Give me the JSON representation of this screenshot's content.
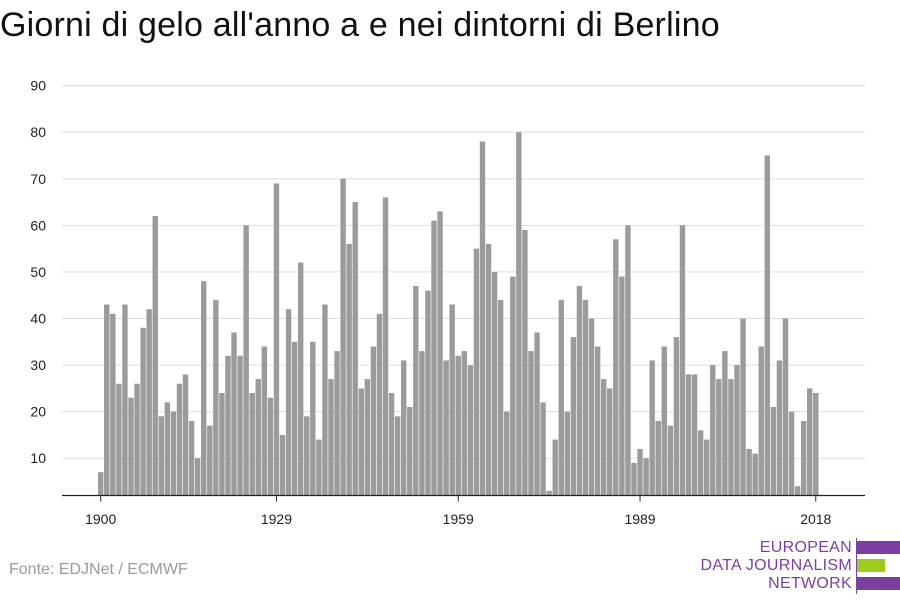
{
  "title": "Giorni di gelo all'anno a e nei dintorni di Berlino",
  "source": "Fonte: EDJNet / ECMWF",
  "logo": {
    "lines": [
      "EUROPEAN",
      "DATA JOURNALISM",
      "NETWORK"
    ],
    "colors": {
      "purple": "#7b3fa0",
      "green": "#9ccc1f"
    }
  },
  "colors": {
    "bar": "#9b9b9b",
    "grid": "#dddddd",
    "axis": "#222222"
  },
  "chart_data": {
    "type": "bar",
    "title": "Giorni di gelo all'anno a e nei dintorni di Berlino",
    "xlabel": "",
    "ylabel": "",
    "ylim": [
      2,
      92
    ],
    "yticks": [
      10,
      20,
      30,
      40,
      50,
      60,
      70,
      80,
      90
    ],
    "xticks": [
      "1900",
      "1929",
      "1959",
      "1989",
      "2018"
    ],
    "grid": true,
    "categories": [
      "1900",
      "1901",
      "1902",
      "1903",
      "1904",
      "1905",
      "1906",
      "1907",
      "1908",
      "1909",
      "1910",
      "1911",
      "1912",
      "1913",
      "1914",
      "1915",
      "1916",
      "1917",
      "1918",
      "1919",
      "1920",
      "1921",
      "1922",
      "1923",
      "1924",
      "1925",
      "1926",
      "1927",
      "1928",
      "1929",
      "1930",
      "1931",
      "1932",
      "1933",
      "1934",
      "1935",
      "1936",
      "1937",
      "1938",
      "1939",
      "1940",
      "1941",
      "1942",
      "1943",
      "1944",
      "1945",
      "1946",
      "1947",
      "1948",
      "1949",
      "1950",
      "1951",
      "1952",
      "1953",
      "1954",
      "1955",
      "1956",
      "1957",
      "1958",
      "1959",
      "1960",
      "1961",
      "1962",
      "1963",
      "1964",
      "1965",
      "1966",
      "1967",
      "1968",
      "1969",
      "1970",
      "1971",
      "1972",
      "1973",
      "1974",
      "1975",
      "1976",
      "1977",
      "1978",
      "1979",
      "1980",
      "1981",
      "1982",
      "1983",
      "1984",
      "1985",
      "1986",
      "1987",
      "1988",
      "1989",
      "1990",
      "1991",
      "1992",
      "1993",
      "1994",
      "1995",
      "1996",
      "1997",
      "1998",
      "1999",
      "2000",
      "2001",
      "2002",
      "2003",
      "2004",
      "2005",
      "2006",
      "2007",
      "2008",
      "2009",
      "2010",
      "2011",
      "2012",
      "2013",
      "2014",
      "2015",
      "2016",
      "2017",
      "2018"
    ],
    "values": [
      7,
      43,
      41,
      26,
      43,
      23,
      26,
      38,
      42,
      62,
      19,
      22,
      20,
      26,
      28,
      18,
      10,
      48,
      17,
      44,
      24,
      32,
      37,
      32,
      60,
      24,
      27,
      34,
      23,
      69,
      15,
      42,
      35,
      52,
      19,
      35,
      14,
      43,
      27,
      33,
      70,
      56,
      65,
      25,
      27,
      34,
      41,
      66,
      24,
      19,
      31,
      21,
      47,
      33,
      46,
      61,
      63,
      31,
      43,
      32,
      33,
      30,
      55,
      78,
      56,
      50,
      44,
      20,
      49,
      80,
      59,
      33,
      37,
      22,
      3,
      14,
      44,
      20,
      36,
      47,
      44,
      40,
      34,
      27,
      25,
      57,
      49,
      60,
      9,
      12,
      10,
      31,
      18,
      34,
      17,
      36,
      60,
      28,
      28,
      16,
      14,
      30,
      27,
      33,
      27,
      30,
      40,
      12,
      11,
      34,
      75,
      21,
      31,
      40,
      20,
      4,
      18,
      25,
      24
    ]
  }
}
